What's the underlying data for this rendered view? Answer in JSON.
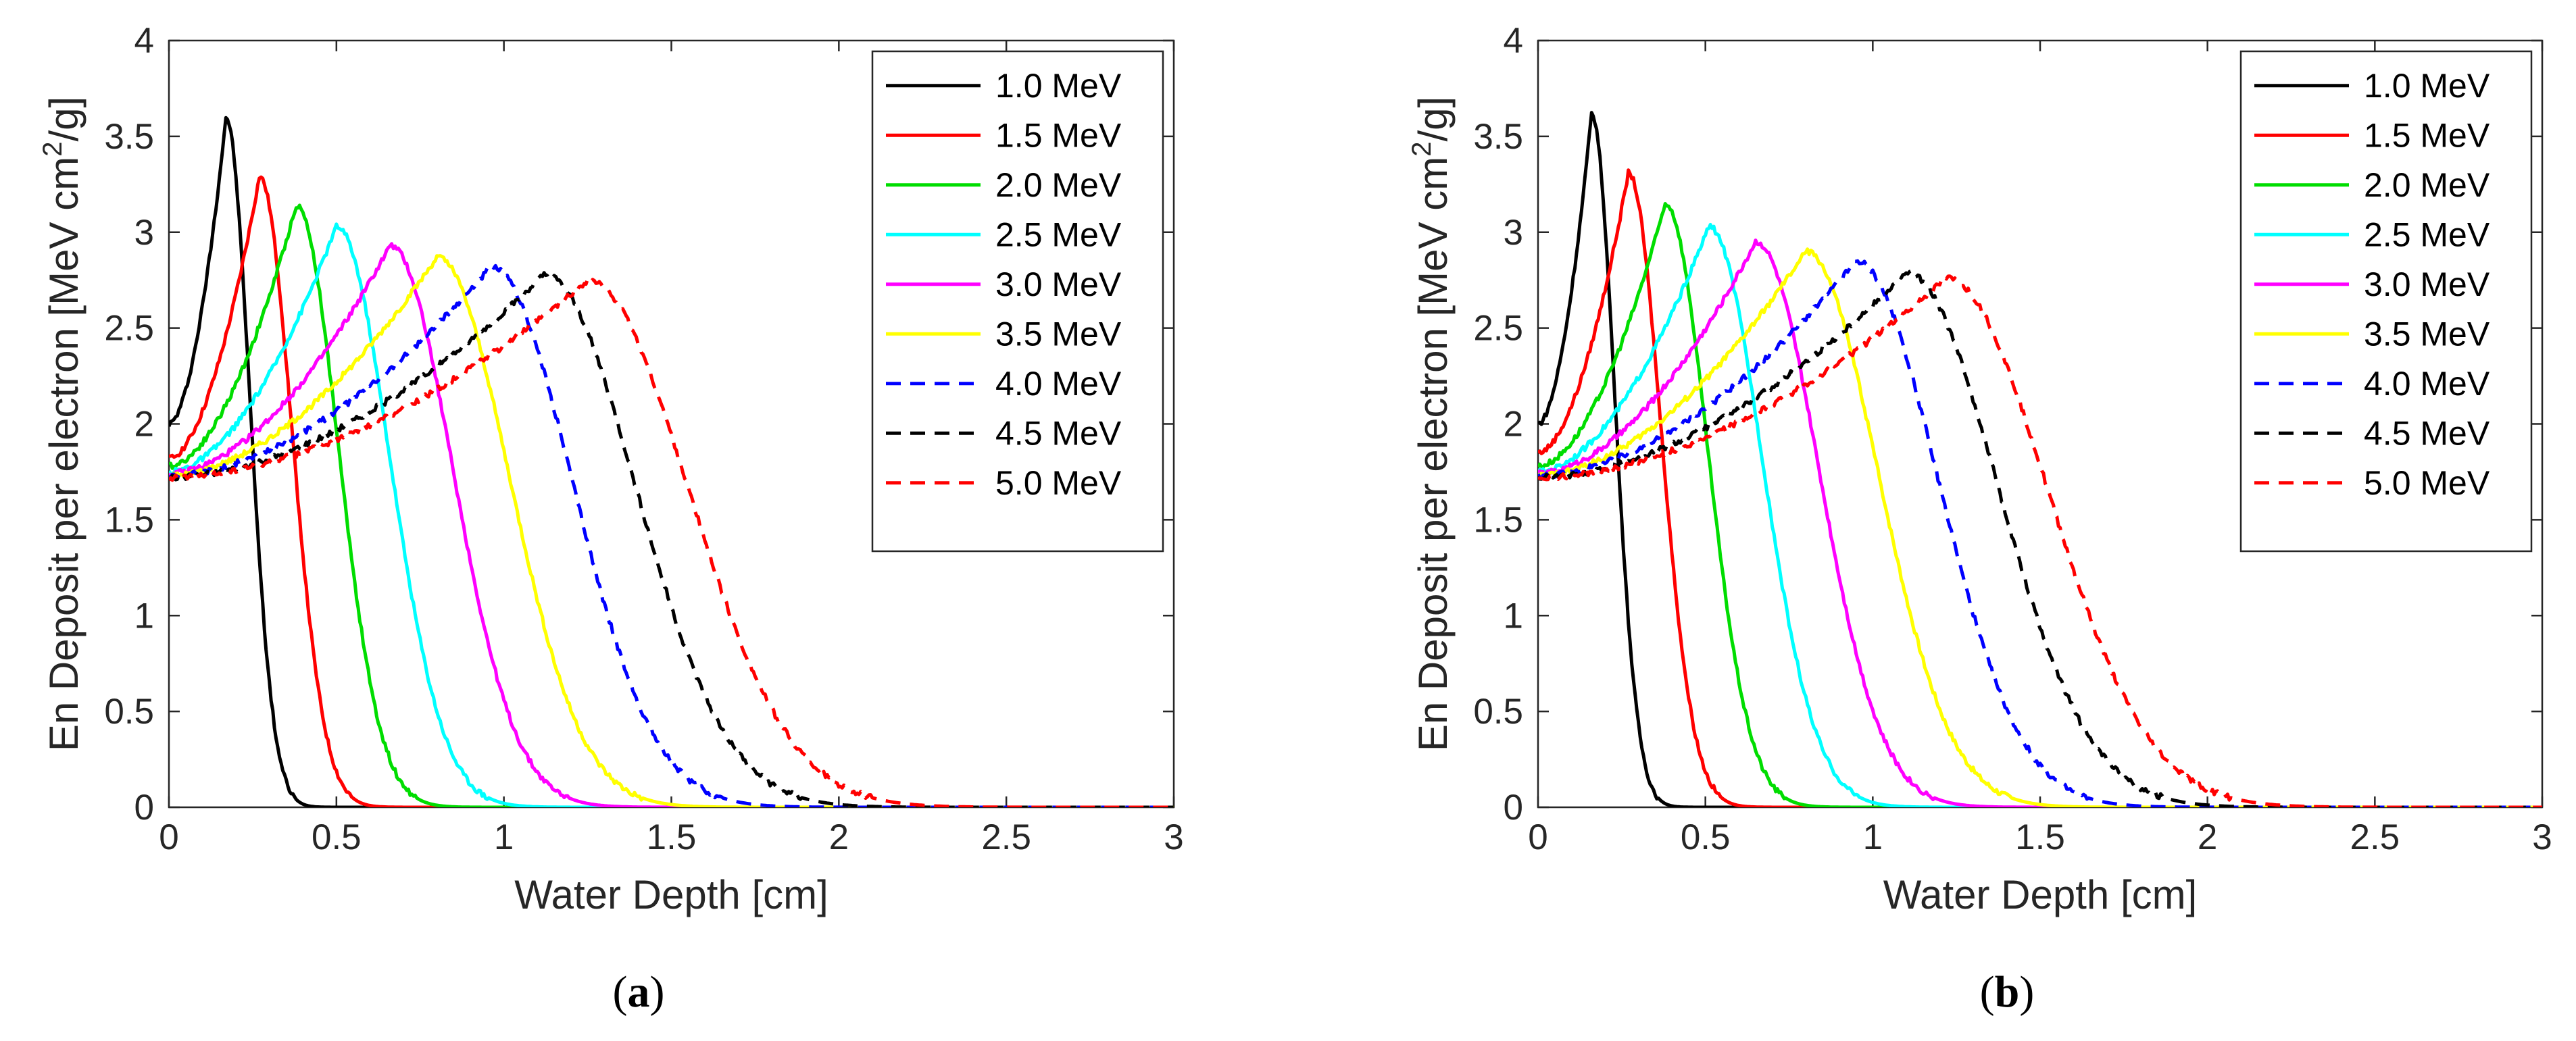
{
  "chart_data": [
    {
      "type": "line",
      "panel": "a",
      "caption_open": "(",
      "caption_letter": "a",
      "caption_close": ")",
      "xlabel": "Water Depth [cm]",
      "ylabel": "En Deposit per electron [MeV cm2/g]",
      "xlim": [
        0,
        3
      ],
      "ylim": [
        0,
        4
      ],
      "xticks": [
        "0",
        "0.5",
        "1",
        "1.5",
        "2",
        "2.5",
        "3"
      ],
      "yticks": [
        "0",
        "0.5",
        "1",
        "1.5",
        "2",
        "2.5",
        "3",
        "3.5",
        "4"
      ],
      "legend_position": "top-right",
      "series": [
        {
          "name": "1.0 MeV",
          "color": "#000000",
          "style": "solid",
          "surface": 2.0,
          "peak_x": 0.17,
          "peak_y": 3.6,
          "sigma": 0.062,
          "sigma_left": 0.1,
          "plateau": [
            0.0,
            0.17
          ]
        },
        {
          "name": "1.5 MeV",
          "color": "#ff0000",
          "style": "solid",
          "surface": 1.82,
          "peak_x": 0.27,
          "peak_y": 3.29,
          "sigma": 0.085,
          "sigma_left": 0.13,
          "plateau": [
            0.0,
            0.27
          ]
        },
        {
          "name": "2.0 MeV",
          "color": "#00dd00",
          "style": "solid",
          "surface": 1.78,
          "peak_x": 0.38,
          "peak_y": 3.14,
          "sigma": 0.11,
          "sigma_left": 0.17,
          "plateau": [
            0.0,
            0.38
          ]
        },
        {
          "name": "2.5 MeV",
          "color": "#00ffff",
          "style": "solid",
          "surface": 1.75,
          "peak_x": 0.5,
          "peak_y": 3.03,
          "sigma": 0.14,
          "sigma_left": 0.22,
          "plateau": [
            0.0,
            0.5
          ]
        },
        {
          "name": "3.0 MeV",
          "color": "#ff00ff",
          "style": "solid",
          "surface": 1.74,
          "peak_x": 0.66,
          "peak_y": 2.93,
          "sigma": 0.165,
          "sigma_left": 0.28,
          "plateau": [
            0.0,
            0.66
          ]
        },
        {
          "name": "3.5 MeV",
          "color": "#ffff00",
          "style": "solid",
          "surface": 1.73,
          "peak_x": 0.8,
          "peak_y": 2.87,
          "sigma": 0.19,
          "sigma_left": 0.33,
          "plateau": [
            0.0,
            0.8
          ]
        },
        {
          "name": "4.0 MeV",
          "color": "#0000ff",
          "style": "dashed",
          "surface": 1.73,
          "peak_x": 0.96,
          "peak_y": 2.82,
          "sigma": 0.215,
          "sigma_left": 0.4,
          "plateau": [
            0.0,
            0.96
          ]
        },
        {
          "name": "4.5 MeV",
          "color": "#000000",
          "style": "dashed",
          "surface": 1.72,
          "peak_x": 1.12,
          "peak_y": 2.78,
          "sigma": 0.24,
          "sigma_left": 0.46,
          "plateau": [
            0.0,
            1.12
          ]
        },
        {
          "name": "5.0 MeV",
          "color": "#ff0000",
          "style": "dashed",
          "surface": 1.72,
          "peak_x": 1.25,
          "peak_y": 2.75,
          "sigma": 0.265,
          "sigma_left": 0.52,
          "plateau": [
            0.0,
            1.25
          ]
        }
      ]
    },
    {
      "type": "line",
      "panel": "b",
      "caption_open": "(",
      "caption_letter": "b",
      "caption_close": ")",
      "xlabel": "Water Depth [cm]",
      "ylabel": "En Deposit per electron [MeV cm2/g]",
      "xlim": [
        0,
        3
      ],
      "ylim": [
        0,
        4
      ],
      "xticks": [
        "0",
        "0.5",
        "1",
        "1.5",
        "2",
        "2.5",
        "3"
      ],
      "yticks": [
        "0",
        "0.5",
        "1",
        "1.5",
        "2",
        "2.5",
        "3",
        "3.5",
        "4"
      ],
      "legend_position": "top-right",
      "series": [
        {
          "name": "1.0 MeV",
          "color": "#000000",
          "style": "solid",
          "surface": 2.0,
          "peak_x": 0.16,
          "peak_y": 3.62,
          "sigma": 0.06,
          "sigma_left": 0.1,
          "plateau": [
            0.0,
            0.16
          ]
        },
        {
          "name": "1.5 MeV",
          "color": "#ff0000",
          "style": "solid",
          "surface": 1.85,
          "peak_x": 0.27,
          "peak_y": 3.31,
          "sigma": 0.085,
          "sigma_left": 0.13,
          "plateau": [
            0.0,
            0.27
          ]
        },
        {
          "name": "2.0 MeV",
          "color": "#00dd00",
          "style": "solid",
          "surface": 1.78,
          "peak_x": 0.38,
          "peak_y": 3.15,
          "sigma": 0.11,
          "sigma_left": 0.17,
          "plateau": [
            0.0,
            0.38
          ]
        },
        {
          "name": "2.5 MeV",
          "color": "#00ffff",
          "style": "solid",
          "surface": 1.75,
          "peak_x": 0.51,
          "peak_y": 3.03,
          "sigma": 0.14,
          "sigma_left": 0.22,
          "plateau": [
            0.0,
            0.51
          ]
        },
        {
          "name": "3.0 MeV",
          "color": "#ff00ff",
          "style": "solid",
          "surface": 1.74,
          "peak_x": 0.65,
          "peak_y": 2.95,
          "sigma": 0.165,
          "sigma_left": 0.28,
          "plateau": [
            0.0,
            0.65
          ]
        },
        {
          "name": "3.5 MeV",
          "color": "#ffff00",
          "style": "solid",
          "surface": 1.73,
          "peak_x": 0.8,
          "peak_y": 2.9,
          "sigma": 0.19,
          "sigma_left": 0.33,
          "plateau": [
            0.0,
            0.8
          ]
        },
        {
          "name": "4.0 MeV",
          "color": "#0000ff",
          "style": "dashed",
          "surface": 1.73,
          "peak_x": 0.95,
          "peak_y": 2.85,
          "sigma": 0.215,
          "sigma_left": 0.4,
          "plateau": [
            0.0,
            0.95
          ]
        },
        {
          "name": "4.5 MeV",
          "color": "#000000",
          "style": "dashed",
          "surface": 1.72,
          "peak_x": 1.1,
          "peak_y": 2.79,
          "sigma": 0.24,
          "sigma_left": 0.46,
          "plateau": [
            0.0,
            1.1
          ]
        },
        {
          "name": "5.0 MeV",
          "color": "#ff0000",
          "style": "dashed",
          "surface": 1.72,
          "peak_x": 1.22,
          "peak_y": 2.76,
          "sigma": 0.265,
          "sigma_left": 0.52,
          "plateau": [
            0.0,
            1.22
          ]
        }
      ]
    }
  ],
  "ylabel_parts": {
    "pre": "En Deposit per electron [MeV cm",
    "sup": "2",
    "post": "/g]"
  }
}
